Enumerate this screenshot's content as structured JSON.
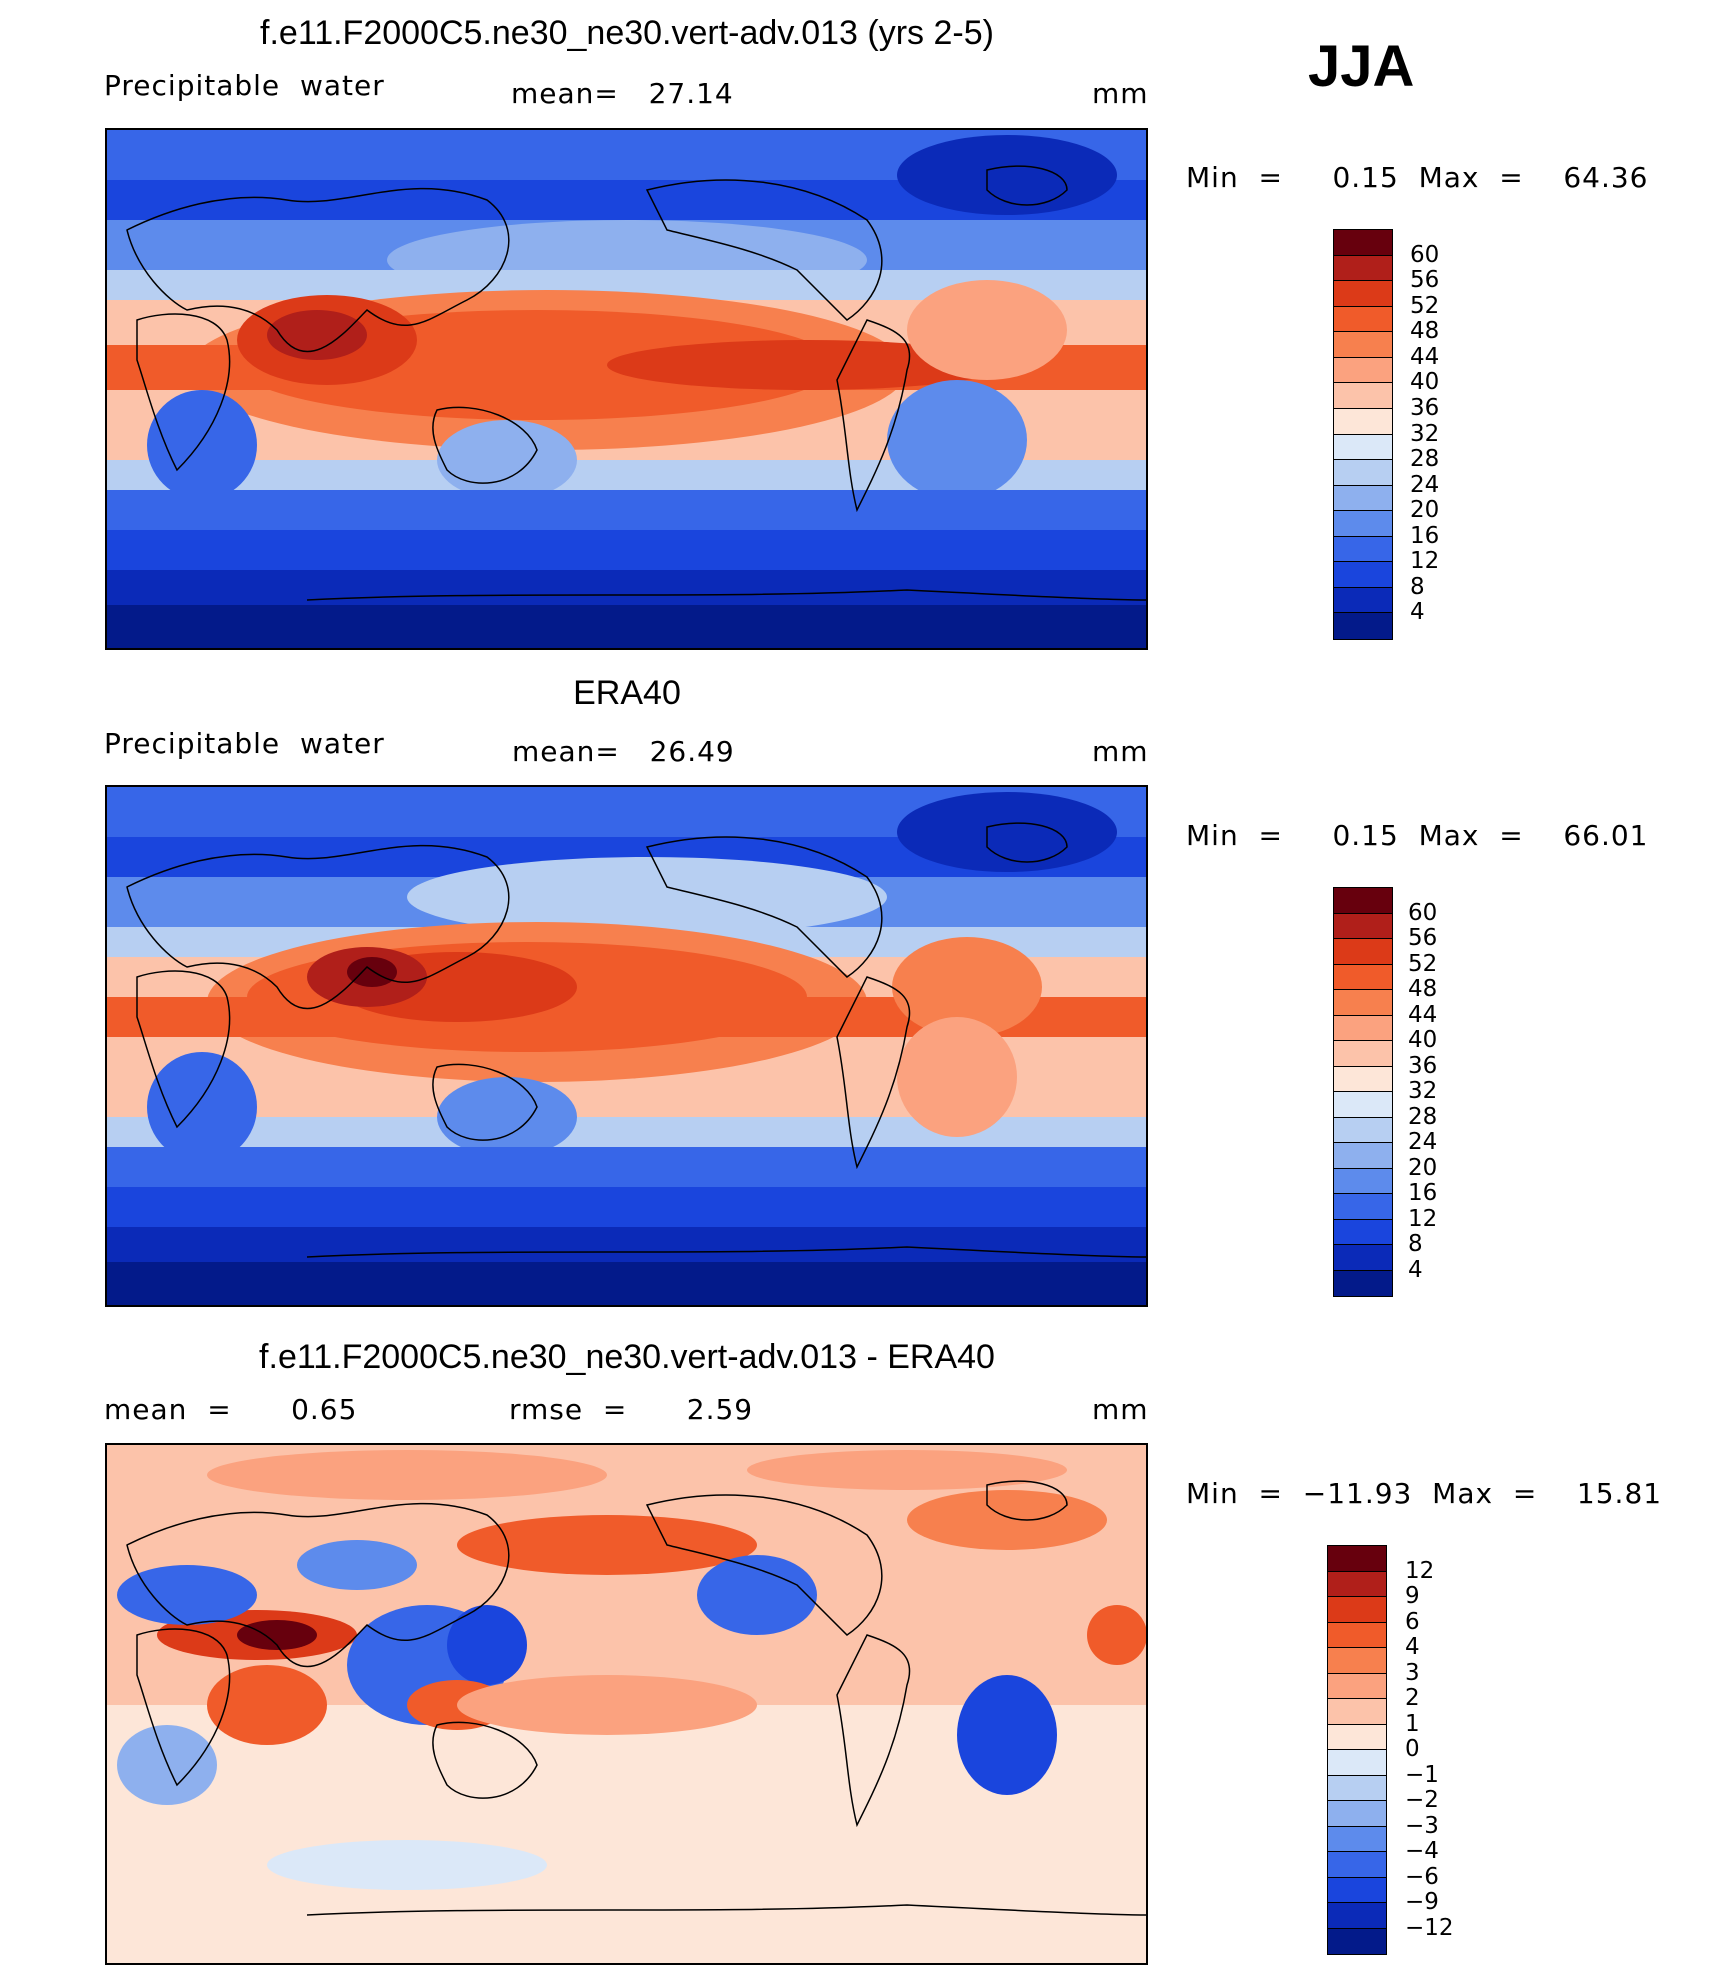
{
  "season": "JJA",
  "panels": [
    {
      "id": "model",
      "title": "f.e11.F2000C5.ne30_ne30.vert-adv.013 (yrs 2-5)",
      "left_label": "Precipitable  water",
      "mid_label": "mean=   27.14",
      "units": "mm",
      "minmax": "Min  =     0.15  Max  =    64.36",
      "colorbar": {
        "levels": [
          "60",
          "56",
          "52",
          "48",
          "44",
          "40",
          "36",
          "32",
          "28",
          "24",
          "20",
          "16",
          "12",
          "8",
          "4"
        ],
        "colors": [
          "#67000d",
          "#b01f1a",
          "#dc3a18",
          "#f05b2a",
          "#f7804e",
          "#fba27f",
          "#fcc3aa",
          "#fde6d8",
          "#dbe8f8",
          "#b7cff2",
          "#8eb0ee",
          "#5d8bec",
          "#3766e8",
          "#1a45dd",
          "#0b2ab8",
          "#031a8a"
        ]
      }
    },
    {
      "id": "obs",
      "title": "ERA40",
      "left_label": "Precipitable  water",
      "mid_label": "mean=   26.49",
      "units": "mm",
      "minmax": "Min  =     0.15  Max  =    66.01",
      "colorbar": {
        "levels": [
          "60",
          "56",
          "52",
          "48",
          "44",
          "40",
          "36",
          "32",
          "28",
          "24",
          "20",
          "16",
          "12",
          "8",
          "4"
        ],
        "colors": [
          "#67000d",
          "#b01f1a",
          "#dc3a18",
          "#f05b2a",
          "#f7804e",
          "#fba27f",
          "#fcc3aa",
          "#fde6d8",
          "#dbe8f8",
          "#b7cff2",
          "#8eb0ee",
          "#5d8bec",
          "#3766e8",
          "#1a45dd",
          "#0b2ab8",
          "#031a8a"
        ]
      }
    },
    {
      "id": "diff",
      "title": "f.e11.F2000C5.ne30_ne30.vert-adv.013 - ERA40",
      "left_label": "mean  =      0.65",
      "mid_label": "rmse  =      2.59",
      "units": "mm",
      "minmax": "Min  =  −11.93  Max  =    15.81",
      "colorbar": {
        "levels": [
          "12",
          "9",
          "6",
          "4",
          "3",
          "2",
          "1",
          "0",
          "−1",
          "−2",
          "−3",
          "−4",
          "−6",
          "−9",
          "−12"
        ],
        "colors": [
          "#67000d",
          "#b01f1a",
          "#dc3a18",
          "#f05b2a",
          "#f7804e",
          "#fba27f",
          "#fcc3aa",
          "#fde6d8",
          "#dbe8f8",
          "#b7cff2",
          "#8eb0ee",
          "#5d8bec",
          "#3766e8",
          "#1a45dd",
          "#0b2ab8",
          "#031a8a"
        ]
      }
    }
  ],
  "chart_data": [
    {
      "type": "heatmap",
      "title": "f.e11.F2000C5.ne30_ne30.vert-adv.013 (yrs 2-5)",
      "variable": "Precipitable  water",
      "units": "mm",
      "mean": 27.14,
      "min": 0.15,
      "max": 64.36,
      "contour_levels": [
        4,
        8,
        12,
        16,
        20,
        24,
        28,
        32,
        36,
        40,
        44,
        48,
        52,
        56,
        60
      ],
      "x": "longitude (0 to 360, Pacific-centered global map)",
      "y": "latitude (90S to 90N)"
    },
    {
      "type": "heatmap",
      "title": "ERA40",
      "variable": "Precipitable  water",
      "units": "mm",
      "mean": 26.49,
      "min": 0.15,
      "max": 66.01,
      "contour_levels": [
        4,
        8,
        12,
        16,
        20,
        24,
        28,
        32,
        36,
        40,
        44,
        48,
        52,
        56,
        60
      ]
    },
    {
      "type": "heatmap",
      "title": "f.e11.F2000C5.ne30_ne30.vert-adv.013 - ERA40",
      "units": "mm",
      "mean": 0.65,
      "rmse": 2.59,
      "min": -11.93,
      "max": 15.81,
      "contour_levels": [
        -12,
        -9,
        -6,
        -4,
        -3,
        -2,
        -1,
        0,
        1,
        2,
        3,
        4,
        6,
        9,
        12
      ]
    }
  ]
}
